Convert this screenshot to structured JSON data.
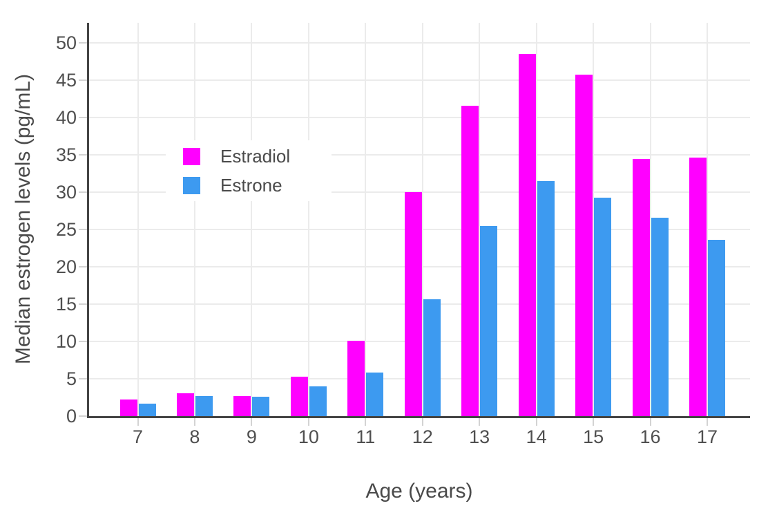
{
  "chart_data": {
    "type": "bar",
    "title": "",
    "xlabel": "Age (years)",
    "ylabel": "Median estrogen levels (pg/mL)",
    "categories": [
      "7",
      "8",
      "9",
      "10",
      "11",
      "12",
      "13",
      "14",
      "15",
      "16",
      "17"
    ],
    "series": [
      {
        "name": "Estradiol",
        "color": "#FF00FF",
        "values": [
          2.2,
          3.1,
          2.7,
          5.3,
          10.1,
          30.0,
          41.6,
          48.5,
          45.8,
          34.5,
          34.6
        ]
      },
      {
        "name": "Estrone",
        "color": "#3D9AF0",
        "values": [
          1.7,
          2.7,
          2.6,
          4.0,
          5.8,
          15.7,
          25.5,
          31.5,
          29.3,
          26.6,
          23.6
        ]
      }
    ],
    "ylim": [
      0,
      52.7
    ],
    "yticks": [
      0,
      5,
      10,
      15,
      20,
      25,
      30,
      35,
      40,
      45,
      50
    ],
    "grid": true,
    "legend_position": "inside-top-left",
    "styles": {
      "background": "#ffffff",
      "grid_color": "#ebebeb",
      "axis_line_color": "#444444",
      "tick_mark_color": "#d3d3d3",
      "text_color": "#4a4a4a"
    }
  }
}
